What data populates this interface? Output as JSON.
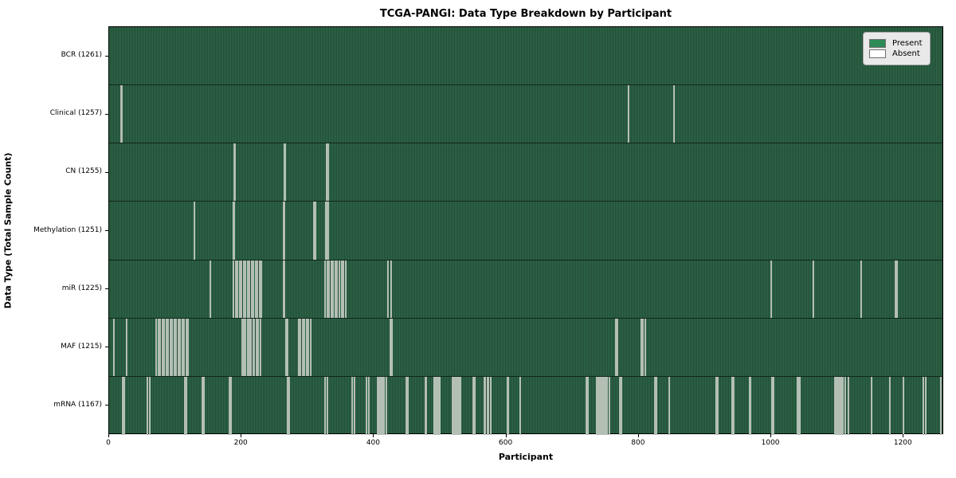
{
  "title": "TCGA-PANGI: Data Type Breakdown by Participant",
  "axes": {
    "xlabel": "Participant",
    "ylabel": "Data Type (Total Sample Count)"
  },
  "legend": {
    "present_label": "Present",
    "absent_label": "Absent"
  },
  "colors": {
    "present": "#2e8b57",
    "absent": "#ffffff",
    "row_texture_light": "#2e6a4b",
    "row_texture_dark": "#224a34",
    "absent_stripe_render": "#b4bfb4",
    "axis_border": "#000000",
    "legend_background": "#e9e9e9"
  },
  "chart_data": {
    "type": "heatmap",
    "title": "TCGA-PANGI: Data Type Breakdown by Participant",
    "xlabel": "Participant",
    "ylabel": "Data Type (Total Sample Count)",
    "legend_entries": [
      "Present",
      "Absent"
    ],
    "legend_position": "upper right",
    "grid": false,
    "x_ticks": [
      0,
      200,
      400,
      600,
      800,
      1000,
      1200
    ],
    "xlim": [
      0,
      1261
    ],
    "n_participants": 1261,
    "rows": [
      {
        "label": "BCR (1261)",
        "data_type": "BCR",
        "sample_count": 1261,
        "absent_count": 0,
        "absent_participants": []
      },
      {
        "label": "Clinical (1257)",
        "data_type": "Clinical",
        "sample_count": 1257,
        "absent_count": 4,
        "absent_participants": [
          17,
          18,
          783,
          852
        ]
      },
      {
        "label": "CN (1255)",
        "data_type": "CN",
        "sample_count": 1255,
        "absent_count": 6,
        "absent_participants": [
          188,
          189,
          264,
          265,
          327,
          330
        ]
      },
      {
        "label": "Methylation (1251)",
        "data_type": "Methylation",
        "sample_count": 1251,
        "absent_count": 10,
        "absent_participants": [
          128,
          187,
          188,
          262,
          264,
          308,
          310,
          326,
          328,
          330
        ]
      },
      {
        "label": "miR (1225)",
        "data_type": "miR",
        "sample_count": 1225,
        "absent_count": 36,
        "absent_participants": [
          152,
          187,
          190,
          193,
          196,
          199,
          202,
          205,
          208,
          211,
          214,
          217,
          220,
          223,
          226,
          229,
          262,
          264,
          325,
          328,
          331,
          334,
          337,
          340,
          343,
          347,
          350,
          353,
          356,
          420,
          425,
          999,
          1062,
          1135,
          1186,
          1189
        ]
      },
      {
        "label": "MAF (1215)",
        "data_type": "MAF",
        "sample_count": 1215,
        "absent_count": 46,
        "absent_participants": [
          6,
          25,
          70,
          73,
          76,
          79,
          82,
          85,
          88,
          91,
          94,
          97,
          100,
          103,
          106,
          109,
          112,
          115,
          118,
          200,
          202,
          205,
          208,
          210,
          213,
          216,
          218,
          221,
          224,
          227,
          266,
          268,
          285,
          288,
          291,
          294,
          297,
          300,
          303,
          423,
          426,
          764,
          766,
          803,
          805,
          808
        ]
      },
      {
        "label": "mRNA (1167)",
        "data_type": "mRNA",
        "sample_count": 1167,
        "absent_count": 94,
        "absent_participants": [
          19,
          22,
          57,
          60,
          113,
          116,
          139,
          142,
          180,
          183,
          268,
          271,
          325,
          328,
          366,
          369,
          388,
          391,
          404,
          406,
          408,
          410,
          412,
          414,
          417,
          448,
          450,
          476,
          478,
          490,
          492,
          494,
          496,
          498,
          517,
          518,
          520,
          521,
          523,
          524,
          526,
          527,
          529,
          549,
          551,
          565,
          567,
          570,
          572,
          575,
          600,
          602,
          620,
          719,
          722,
          735,
          737,
          739,
          741,
          744,
          746,
          749,
          751,
          755,
          770,
          772,
          823,
          825,
          845,
          916,
          918,
          940,
          942,
          966,
          968,
          1000,
          1002,
          1038,
          1040,
          1042,
          1095,
          1097,
          1100,
          1102,
          1105,
          1107,
          1110,
          1115,
          1150,
          1178,
          1198,
          1228,
          1232,
          1255
        ]
      }
    ]
  }
}
